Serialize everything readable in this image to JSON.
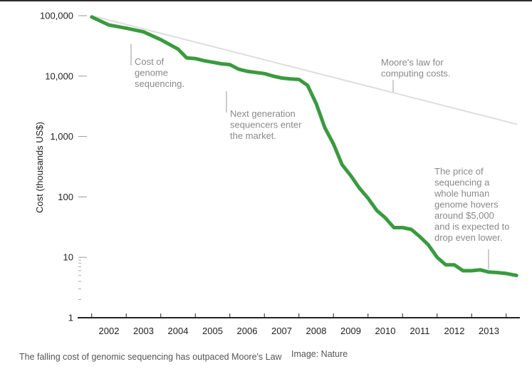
{
  "chart_data": {
    "type": "line",
    "ylabel": "Cost (thousands US$)",
    "y_scale": "log",
    "ylim": [
      1,
      100000
    ],
    "y_ticks": [
      "1",
      "10",
      "100",
      "1,000",
      "10,000",
      "100,000"
    ],
    "y_tick_values": [
      1,
      10,
      100,
      1000,
      10000,
      100000
    ],
    "x_ticks": [
      "2002",
      "2003",
      "2004",
      "2005",
      "2006",
      "2007",
      "2008",
      "2009",
      "2010",
      "2011",
      "2012",
      "2013"
    ],
    "x_tick_values": [
      2002,
      2003,
      2004,
      2005,
      2006,
      2007,
      2008,
      2009,
      2010,
      2011,
      2012,
      2013
    ],
    "xlim": [
      2001.5,
      2013.8
    ],
    "grid": false,
    "series": [
      {
        "color": "#3a9a3f",
        "x": [
          2001.5,
          2002.0,
          2002.5,
          2003.0,
          2003.5,
          2004.0,
          2004.25,
          2004.5,
          2004.75,
          2005.0,
          2005.25,
          2005.5,
          2005.75,
          2006.0,
          2006.25,
          2006.5,
          2006.75,
          2007.0,
          2007.25,
          2007.5,
          2007.75,
          2008.0,
          2008.25,
          2008.5,
          2008.75,
          2009.0,
          2009.25,
          2009.5,
          2009.75,
          2010.0,
          2010.25,
          2010.5,
          2010.75,
          2011.0,
          2011.25,
          2011.5,
          2011.75,
          2012.0,
          2012.25,
          2012.5,
          2012.75,
          2013.0,
          2013.25,
          2013.5,
          2013.8
        ],
        "values": [
          95000,
          70000,
          62000,
          54000,
          40000,
          28000,
          20000,
          19500,
          18000,
          17000,
          16000,
          15500,
          13000,
          12000,
          11500,
          11000,
          10000,
          9300,
          9000,
          8800,
          7000,
          3500,
          1400,
          750,
          340,
          225,
          140,
          95,
          60,
          45,
          31,
          31,
          29,
          22,
          16,
          10,
          7.5,
          7.5,
          6,
          6,
          6.2,
          5.7,
          5.6,
          5.4,
          5.0
        ]
      },
      {
        "color": "#dddddd",
        "x": [
          2001.5,
          2013.8
        ],
        "values": [
          100000,
          1600
        ]
      }
    ],
    "annotations": [
      "Cost of genome sequencing.",
      "Next generation sequencers enter the market.",
      "Moore's law for computing costs.",
      "The price of sequencing a whole human genome hovers around $5,000 and is expected to drop even lower."
    ]
  },
  "notes": {
    "cost": [
      "Cost of",
      "genome",
      "sequencing."
    ],
    "nextgen": [
      "Next generation",
      "sequencers enter",
      "the market."
    ],
    "moore": [
      "Moore's law for",
      "computing costs."
    ],
    "price": [
      "The price of",
      "sequencing a",
      "whole human",
      "genome hovers",
      "around $5,000",
      "and is expected to",
      "drop even lower."
    ]
  },
  "caption": "The falling cost of genomic sequencing has outpaced Moore's Law",
  "credit": "Image: Nature"
}
